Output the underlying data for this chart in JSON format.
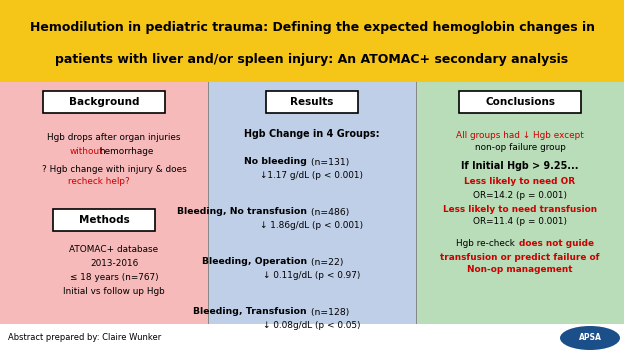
{
  "title_line1": "Hemodilution in pediatric trauma: Defining the expected hemoglobin changes in",
  "title_line2": "patients with liver and/or spleen injury: An ATOMAC+ secondary analysis",
  "title_bg": "#F5C518",
  "col1_bg": "#F7BABA",
  "col2_bg": "#BFCFE8",
  "col3_bg": "#B8DDB8",
  "footer_bg": "#FFFFFF",
  "footer_text": "Abstract prepared by: Claire Wunker",
  "col1_header": "Background",
  "col2_header": "Results",
  "col3_header": "Conclusions",
  "red": "#CC0000",
  "black": "#000000",
  "title_fontsize": 9.0,
  "body_fontsize": 6.4,
  "header_fontsize": 7.5
}
